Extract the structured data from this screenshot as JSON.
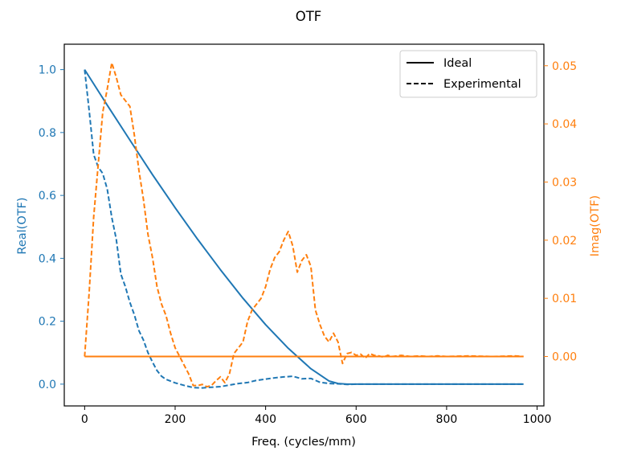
{
  "chart_data": {
    "type": "line",
    "title": "OTF",
    "xlabel": "Freq. (cycles/mm)",
    "ylabel_left": "Real(OTF)",
    "ylabel_right": "Imag(OTF)",
    "xlim": [
      -45,
      1015
    ],
    "ylim_left": [
      -0.0693,
      1.0808
    ],
    "ylim_right": [
      -0.0085,
      0.0537
    ],
    "x_ticks": [
      0,
      200,
      400,
      600,
      800,
      1000
    ],
    "y_left_ticks": [
      0.0,
      0.2,
      0.4,
      0.6,
      0.8,
      1.0
    ],
    "y_right_ticks": [
      0.0,
      0.01,
      0.02,
      0.03,
      0.04,
      0.05
    ],
    "x_tick_labels": [
      "0",
      "200",
      "400",
      "600",
      "800",
      "1000"
    ],
    "y_left_tick_labels": [
      "0.0",
      "0.2",
      "0.4",
      "0.6",
      "0.8",
      "1.0"
    ],
    "y_right_tick_labels": [
      "0.00",
      "0.01",
      "0.02",
      "0.03",
      "0.04",
      "0.05"
    ],
    "grid": false,
    "legend": {
      "position": "top-right",
      "entries": [
        {
          "label": "Ideal",
          "linestyle": "solid"
        },
        {
          "label": "Experimental",
          "linestyle": "dashed"
        }
      ]
    },
    "colors": {
      "real": "#1f77b4",
      "imag": "#ff7f0e",
      "axis": "#000000"
    },
    "series": [
      {
        "axis": "left",
        "color": "#1f77b4",
        "linestyle": "solid",
        "legend": "Ideal",
        "x": [
          0,
          50,
          100,
          150,
          200,
          250,
          300,
          350,
          400,
          450,
          500,
          540,
          560,
          580,
          600,
          700,
          800,
          900,
          970
        ],
        "y": [
          1.0,
          0.887,
          0.776,
          0.666,
          0.561,
          0.46,
          0.364,
          0.273,
          0.189,
          0.114,
          0.049,
          0.01,
          0.002,
          0.0,
          0.0,
          0.0,
          0.0,
          0.0,
          0.0
        ]
      },
      {
        "axis": "left",
        "color": "#1f77b4",
        "linestyle": "dashed",
        "legend": "Experimental",
        "x": [
          0,
          10,
          20,
          30,
          40,
          50,
          60,
          70,
          80,
          90,
          100,
          110,
          120,
          130,
          140,
          150,
          160,
          170,
          180,
          200,
          220,
          240,
          260,
          280,
          300,
          320,
          340,
          360,
          380,
          400,
          420,
          440,
          460,
          480,
          500,
          520,
          540,
          560,
          580,
          600,
          700,
          800,
          900,
          970
        ],
        "y": [
          1.0,
          0.87,
          0.73,
          0.69,
          0.67,
          0.62,
          0.53,
          0.46,
          0.35,
          0.31,
          0.26,
          0.22,
          0.17,
          0.14,
          0.1,
          0.07,
          0.043,
          0.025,
          0.015,
          0.004,
          -0.004,
          -0.011,
          -0.012,
          -0.01,
          -0.008,
          -0.003,
          0.002,
          0.005,
          0.012,
          0.016,
          0.02,
          0.023,
          0.025,
          0.017,
          0.018,
          0.006,
          0.002,
          0.001,
          -0.001,
          0.0,
          0.0,
          0.0,
          0.0,
          0.0
        ]
      },
      {
        "axis": "right",
        "color": "#ff7f0e",
        "linestyle": "solid",
        "legend": "Ideal",
        "x": [
          0,
          970
        ],
        "y": [
          0.0,
          0.0
        ]
      },
      {
        "axis": "right",
        "color": "#ff7f0e",
        "linestyle": "dashed",
        "legend": "Experimental",
        "x": [
          0,
          10,
          20,
          30,
          40,
          50,
          60,
          70,
          80,
          90,
          100,
          110,
          120,
          130,
          140,
          150,
          160,
          170,
          180,
          190,
          200,
          210,
          220,
          230,
          240,
          250,
          260,
          270,
          280,
          290,
          300,
          310,
          320,
          330,
          340,
          350,
          360,
          370,
          380,
          390,
          400,
          410,
          420,
          430,
          440,
          450,
          460,
          470,
          480,
          490,
          500,
          510,
          520,
          530,
          540,
          550,
          560,
          570,
          580,
          590,
          600,
          610,
          620,
          630,
          640,
          650,
          660,
          670,
          680,
          690,
          700,
          720,
          740,
          760,
          780,
          800,
          850,
          900,
          950,
          970
        ],
        "y": [
          0.0,
          0.011,
          0.024,
          0.033,
          0.042,
          0.046,
          0.0505,
          0.048,
          0.045,
          0.044,
          0.043,
          0.038,
          0.032,
          0.027,
          0.021,
          0.017,
          0.012,
          0.009,
          0.007,
          0.004,
          0.0015,
          0.0,
          -0.0015,
          -0.003,
          -0.005,
          -0.005,
          -0.0048,
          -0.0052,
          -0.005,
          -0.0042,
          -0.0035,
          -0.0045,
          -0.003,
          0.0005,
          0.0015,
          0.0025,
          0.006,
          0.008,
          0.009,
          0.01,
          0.012,
          0.015,
          0.017,
          0.018,
          0.02,
          0.0215,
          0.019,
          0.0145,
          0.0165,
          0.0175,
          0.0155,
          0.008,
          0.0055,
          0.0035,
          0.0025,
          0.004,
          0.0025,
          -0.0012,
          0.0005,
          0.0007,
          0.0002,
          0.0004,
          -0.0003,
          0.0005,
          0.0002,
          0.0001,
          -0.0001,
          0.0002,
          0.0,
          0.0001,
          0.0002,
          0.0,
          0.0001,
          0.0,
          0.0001,
          0.0,
          0.0001,
          0.0,
          0.0001,
          0.0
        ]
      }
    ]
  }
}
